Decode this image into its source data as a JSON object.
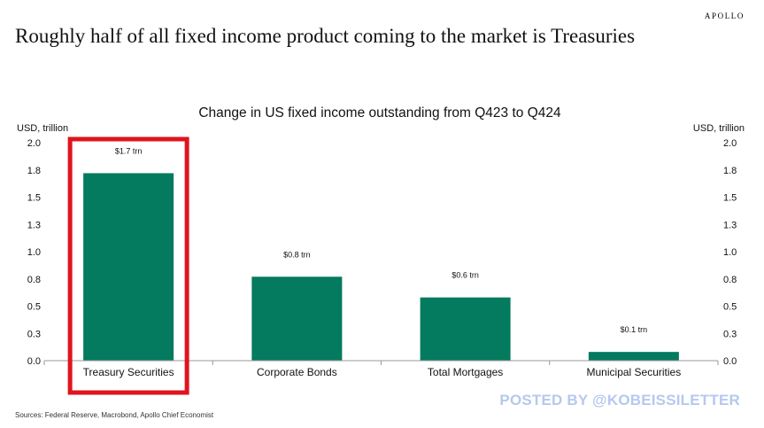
{
  "brand": "APOLLO",
  "headline": "Roughly half of all fixed income product coming to the market is Treasuries",
  "sources": "Sources: Federal Reserve, Macrobond, Apollo Chief Economist",
  "watermark": "POSTED BY @KOBEISSILETTER",
  "chart_data": {
    "type": "bar",
    "title": "Change in US fixed income outstanding from Q423 to Q424",
    "ylabel_left": "USD, trillion",
    "ylabel_right": "USD, trillion",
    "categories": [
      "Treasury Securities",
      "Corporate Bonds",
      "Total Mortgages",
      "Municipal Securities"
    ],
    "values": [
      1.72,
      0.77,
      0.58,
      0.08
    ],
    "data_labels": [
      "$1.7 trn",
      "$0.8 trn",
      "$0.6 trn",
      "$0.1 trn"
    ],
    "ylim": [
      0,
      2.0
    ],
    "yticks": [
      0,
      0.25,
      0.5,
      0.75,
      1.0,
      1.25,
      1.5,
      1.75,
      2.0
    ],
    "ytick_labels": [
      "0.0",
      "0.3",
      "0.5",
      "0.8",
      "1.0",
      "1.3",
      "1.5",
      "1.8",
      "2.0"
    ],
    "bar_color": "#047a5e",
    "highlight_category": "Treasury Securities",
    "highlight_color": "#e0141e",
    "grid": false
  }
}
